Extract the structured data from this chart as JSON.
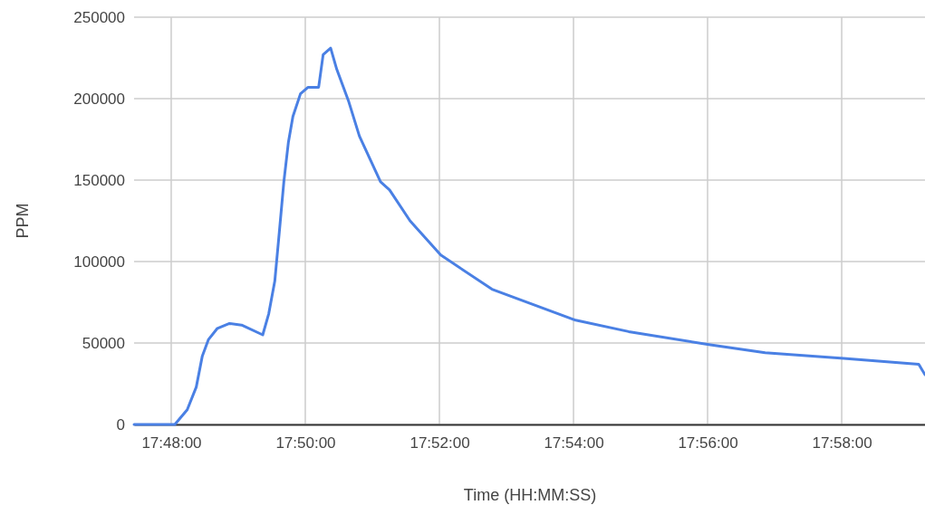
{
  "chart_data": {
    "type": "line",
    "xlabel": "Time (HH:MM:SS)",
    "ylabel": "PPM",
    "grid": true,
    "x": [
      17.79077,
      17.8009,
      17.80398,
      17.80623,
      17.80773,
      17.80923,
      17.81148,
      17.81448,
      17.8175,
      17.82275,
      17.82425,
      17.82575,
      17.82687,
      17.828,
      17.82912,
      17.83025,
      17.83213,
      17.83402,
      17.83665,
      17.83777,
      17.83963,
      17.84115,
      17.84415,
      17.84678,
      17.85203,
      17.85428,
      17.85937,
      17.867,
      17.87973,
      17.90053,
      17.91372,
      17.93365,
      17.94765,
      17.96718,
      17.98582,
      17.98738
    ],
    "series": [
      {
        "color": "#4a80e4",
        "values": [
          0,
          0,
          9000,
          23000,
          42000,
          52000,
          59000,
          62000,
          61000,
          55000,
          68000,
          88000,
          118000,
          149000,
          173000,
          189000,
          203000,
          207000,
          207000,
          227000,
          231000,
          218000,
          198000,
          177000,
          149000,
          144000,
          125000,
          104000,
          83000,
          64000,
          57000,
          49000,
          44000,
          40500,
          37000,
          30500
        ]
      }
    ],
    "xlim": [
      17.79077,
      17.98738
    ],
    "xticks": [
      {
        "value": 17.8,
        "label": "17:48:00"
      },
      {
        "value": 17.83333,
        "label": "17:50:00"
      },
      {
        "value": 17.86667,
        "label": "17:52:00"
      },
      {
        "value": 17.9,
        "label": "17:54:00"
      },
      {
        "value": 17.93333,
        "label": "17:56:00"
      },
      {
        "value": 17.96667,
        "label": "17:58:00"
      }
    ],
    "ylim": [
      0,
      250000
    ],
    "yticks": [
      0,
      50000,
      100000,
      150000,
      200000,
      250000
    ]
  }
}
